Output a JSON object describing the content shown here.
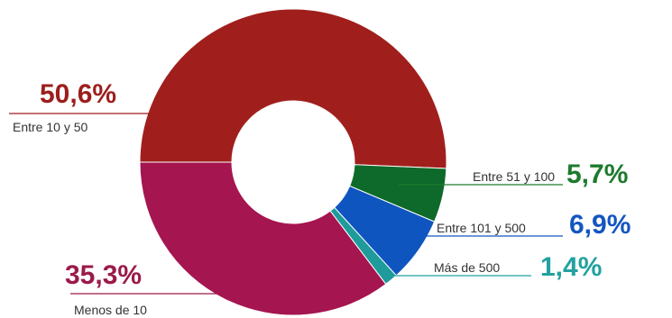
{
  "chart_data": {
    "type": "pie",
    "donut": true,
    "legend": "none",
    "slices": [
      {
        "label": "Entre 10 y 50",
        "value": 50.6,
        "value_text": "50,6%",
        "color": "#a01f1c"
      },
      {
        "label": "Entre 51 y 100",
        "value": 5.7,
        "value_text": "5,7%",
        "color": "#0e6a2a"
      },
      {
        "label": "Entre 101 y 500",
        "value": 6.9,
        "value_text": "6,9%",
        "color": "#0f55c0"
      },
      {
        "label": "Más de 500",
        "value": 1.4,
        "value_text": "1,4%",
        "color": "#1f9b9b"
      },
      {
        "label": "Menos de 10",
        "value": 35.3,
        "value_text": "35,3%",
        "color": "#a5154f"
      }
    ],
    "label_colors": {
      "Entre 10 y 50": "#9c1e1c",
      "Entre 51 y 100": "#1e7a2e",
      "Entre 101 y 500": "#1456c0",
      "Más de 500": "#22a1a1",
      "Menos de 10": "#9b1a4a"
    }
  }
}
